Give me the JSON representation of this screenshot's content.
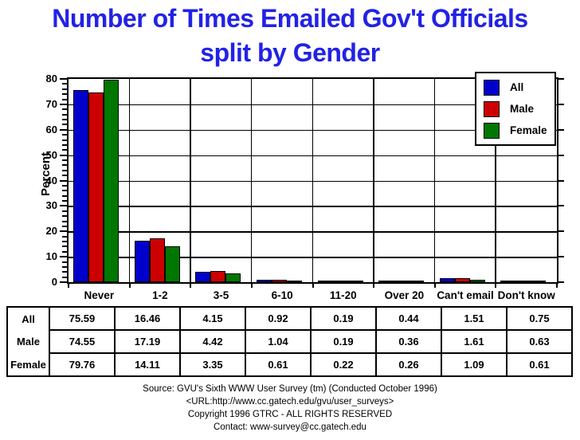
{
  "page": {
    "title_line1": "Number of Times Emailed Gov't Officials",
    "title_line2": "split by Gender",
    "title_color": "#2222e6"
  },
  "chart_data": {
    "type": "bar",
    "title": "Number of Times Emailed Gov't Officials split by Gender",
    "xlabel": "",
    "ylabel": "Percent",
    "ylim": [
      0,
      80
    ],
    "y_major_step": 10,
    "y_minor_step": 2,
    "grid": true,
    "legend_position": "top-right",
    "legend_entries": [
      "All",
      "Male",
      "Female"
    ],
    "categories": [
      "Never",
      "1-2",
      "3-5",
      "6-10",
      "11-20",
      "Over 20",
      "Can't email",
      "Don't know"
    ],
    "series": [
      {
        "name": "All",
        "color": "#0000cc",
        "values": [
          75.59,
          16.46,
          4.15,
          0.92,
          0.19,
          0.44,
          1.51,
          0.75
        ]
      },
      {
        "name": "Male",
        "color": "#cc0000",
        "values": [
          74.55,
          17.19,
          4.42,
          1.04,
          0.19,
          0.36,
          1.61,
          0.63
        ]
      },
      {
        "name": "Female",
        "color": "#007700",
        "values": [
          79.76,
          14.11,
          3.35,
          0.61,
          0.22,
          0.26,
          1.09,
          0.61
        ]
      }
    ],
    "table_row_labels": [
      "All",
      "Male",
      "Female"
    ]
  },
  "footer": {
    "lines": [
      "Source: GVU's Sixth WWW User Survey (tm) (Conducted October 1996)",
      "<URL:http://www.cc.gatech.edu/gvu/user_surveys>",
      "Copyright 1996 GTRC - ALL RIGHTS RESERVED",
      "Contact: www-survey@cc.gatech.edu"
    ]
  }
}
